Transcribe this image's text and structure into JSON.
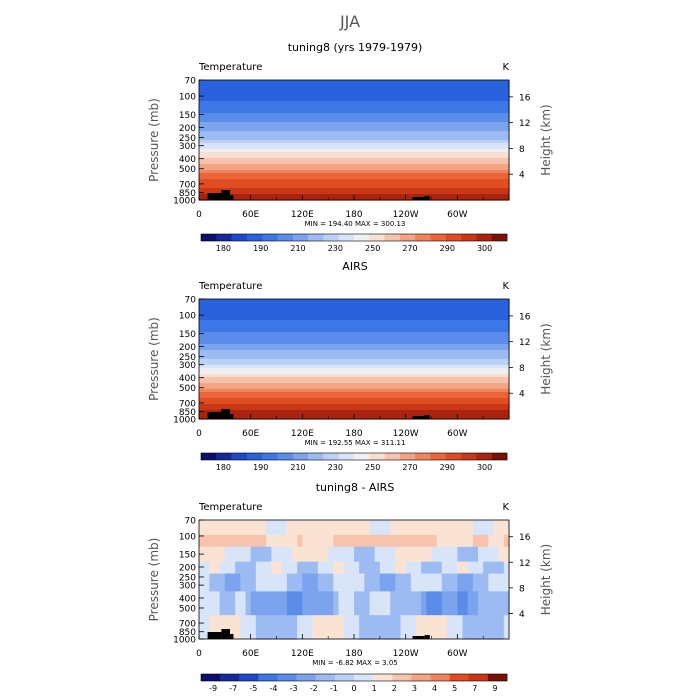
{
  "figure": {
    "title": "JJA"
  },
  "chart_data": [
    {
      "type": "heatmap",
      "title": "tuning8 (yrs 1979-1979)",
      "variable_label": "Temperature",
      "units_label": "K",
      "ylabel": "Pressure (mb)",
      "ylabel_right": "Height (km)",
      "x_tick_labels": [
        "0",
        "60E",
        "120E",
        "180",
        "120W",
        "60W"
      ],
      "x_tick_lon": [
        0,
        60,
        120,
        180,
        240,
        300
      ],
      "xlim": [
        0,
        360
      ],
      "y_tick_labels": [
        "70",
        "100",
        "150",
        "200",
        "250",
        "300",
        "400",
        "500",
        "700",
        "850",
        "1000"
      ],
      "y_tick_values": [
        70,
        100,
        150,
        200,
        250,
        300,
        400,
        500,
        700,
        850,
        1000
      ],
      "ylim": [
        1000,
        70
      ],
      "y_scale": "log",
      "right_tick_labels": [
        "16",
        "12",
        "8",
        "4"
      ],
      "right_tick_km": [
        16,
        12,
        8,
        4
      ],
      "stats_text": "MIN = 194.40   MAX = 300.13",
      "min": 194.4,
      "max": 300.13,
      "colorbar": {
        "tick_labels": [
          "180",
          "190",
          "210",
          "230",
          "250",
          "270",
          "290",
          "300"
        ],
        "colors": [
          "#0a0f6e",
          "#152a9a",
          "#1f48c8",
          "#2a62dd",
          "#3b78e6",
          "#5a8de9",
          "#7ba3ee",
          "#9cbbf3",
          "#bcd1f6",
          "#d8e4f8",
          "#eef0f2",
          "#f9ded2",
          "#f7c3ad",
          "#f4a482",
          "#f0845b",
          "#ea6639",
          "#e04d22",
          "#c93717",
          "#a8240f",
          "#7c1007"
        ]
      },
      "profile_field": "model"
    },
    {
      "type": "heatmap",
      "title": "AIRS",
      "variable_label": "Temperature",
      "units_label": "K",
      "ylabel": "Pressure (mb)",
      "ylabel_right": "Height (km)",
      "x_tick_labels": [
        "0",
        "60E",
        "120E",
        "180",
        "120W",
        "60W"
      ],
      "x_tick_lon": [
        0,
        60,
        120,
        180,
        240,
        300
      ],
      "xlim": [
        0,
        360
      ],
      "y_tick_labels": [
        "70",
        "100",
        "150",
        "200",
        "250",
        "300",
        "400",
        "500",
        "700",
        "850",
        "1000"
      ],
      "y_tick_values": [
        70,
        100,
        150,
        200,
        250,
        300,
        400,
        500,
        700,
        850,
        1000
      ],
      "ylim": [
        1000,
        70
      ],
      "y_scale": "log",
      "right_tick_labels": [
        "16",
        "12",
        "8",
        "4"
      ],
      "right_tick_km": [
        16,
        12,
        8,
        4
      ],
      "stats_text": "MIN = 192.55   MAX = 311.11",
      "min": 192.55,
      "max": 311.11,
      "colorbar": {
        "tick_labels": [
          "180",
          "190",
          "210",
          "230",
          "250",
          "270",
          "290",
          "300"
        ],
        "colors": [
          "#0a0f6e",
          "#152a9a",
          "#1f48c8",
          "#2a62dd",
          "#3b78e6",
          "#5a8de9",
          "#7ba3ee",
          "#9cbbf3",
          "#bcd1f6",
          "#d8e4f8",
          "#eef0f2",
          "#f9ded2",
          "#f7c3ad",
          "#f4a482",
          "#f0845b",
          "#ea6639",
          "#e04d22",
          "#c93717",
          "#a8240f",
          "#7c1007"
        ]
      },
      "profile_field": "obs"
    },
    {
      "type": "heatmap",
      "title": "tuning8 - AIRS",
      "variable_label": "Temperature",
      "units_label": "K",
      "ylabel": "Pressure (mb)",
      "ylabel_right": "Height (km)",
      "x_tick_labels": [
        "0",
        "60E",
        "120E",
        "180",
        "120W",
        "60W"
      ],
      "x_tick_lon": [
        0,
        60,
        120,
        180,
        240,
        300
      ],
      "xlim": [
        0,
        360
      ],
      "y_tick_labels": [
        "70",
        "100",
        "150",
        "200",
        "250",
        "300",
        "400",
        "500",
        "700",
        "850",
        "1000"
      ],
      "y_tick_values": [
        70,
        100,
        150,
        200,
        250,
        300,
        400,
        500,
        700,
        850,
        1000
      ],
      "ylim": [
        1000,
        70
      ],
      "y_scale": "log",
      "right_tick_labels": [
        "16",
        "12",
        "8",
        "4"
      ],
      "right_tick_km": [
        16,
        12,
        8,
        4
      ],
      "stats_text": "MIN =  -6.82   MAX =   3.05",
      "min": -6.82,
      "max": 3.05,
      "colorbar": {
        "tick_labels": [
          "-9",
          "-7",
          "-5",
          "-4",
          "-3",
          "-2",
          "-1",
          "0",
          "1",
          "2",
          "3",
          "4",
          "5",
          "7",
          "9"
        ],
        "colors": [
          "#0a0f6e",
          "#152a9a",
          "#1f48c8",
          "#3b78e6",
          "#5a8de9",
          "#7ba3ee",
          "#9cbbf3",
          "#bcd1f6",
          "#d8e4f8",
          "#fbe3d4",
          "#f7c3ad",
          "#f4a482",
          "#f0845b",
          "#e04d22",
          "#c93717",
          "#7c1007"
        ]
      },
      "profile_field": "diff"
    }
  ]
}
